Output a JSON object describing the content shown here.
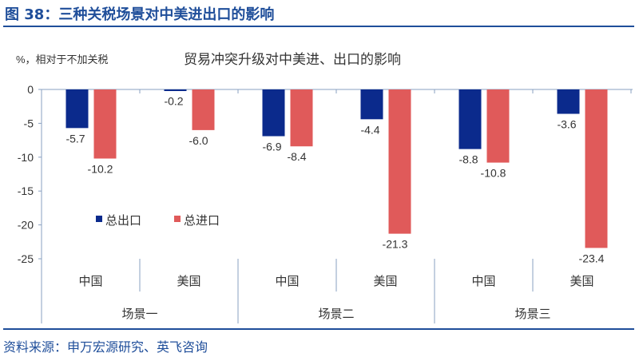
{
  "figure_title": "图 38：三种关税场景对中美进出口的影响",
  "source": "资料来源：申万宏源研究、英飞咨询",
  "colors": {
    "export": "#0b2a8c",
    "import": "#e05a5a",
    "accent": "#1f4e9a"
  },
  "chart_data": {
    "type": "bar",
    "title": "贸易冲突升级对中美进、出口的影响",
    "ylabel": "%，相对于不加关税",
    "ylim": [
      -25,
      0
    ],
    "yticks": [
      0,
      -5,
      -10,
      -15,
      -20,
      -25
    ],
    "categories": [
      "中国",
      "美国",
      "中国",
      "美国",
      "中国",
      "美国"
    ],
    "groups": [
      "场景一",
      "场景二",
      "场景三"
    ],
    "legend_position": "left-middle",
    "grid": false,
    "series": [
      {
        "name": "总出口",
        "values": [
          -5.7,
          -0.2,
          -6.9,
          -4.4,
          -8.8,
          -3.6
        ]
      },
      {
        "name": "总进口",
        "values": [
          -10.2,
          -6.0,
          -8.4,
          -21.3,
          -10.8,
          -23.4
        ]
      }
    ],
    "data_labels": [
      [
        "-5.7",
        "-0.2",
        "-6.9",
        "-4.4",
        "-8.8",
        "-3.6"
      ],
      [
        "-10.2",
        "-6.0",
        "-8.4",
        "-21.3",
        "-10.8",
        "-23.4"
      ]
    ]
  }
}
